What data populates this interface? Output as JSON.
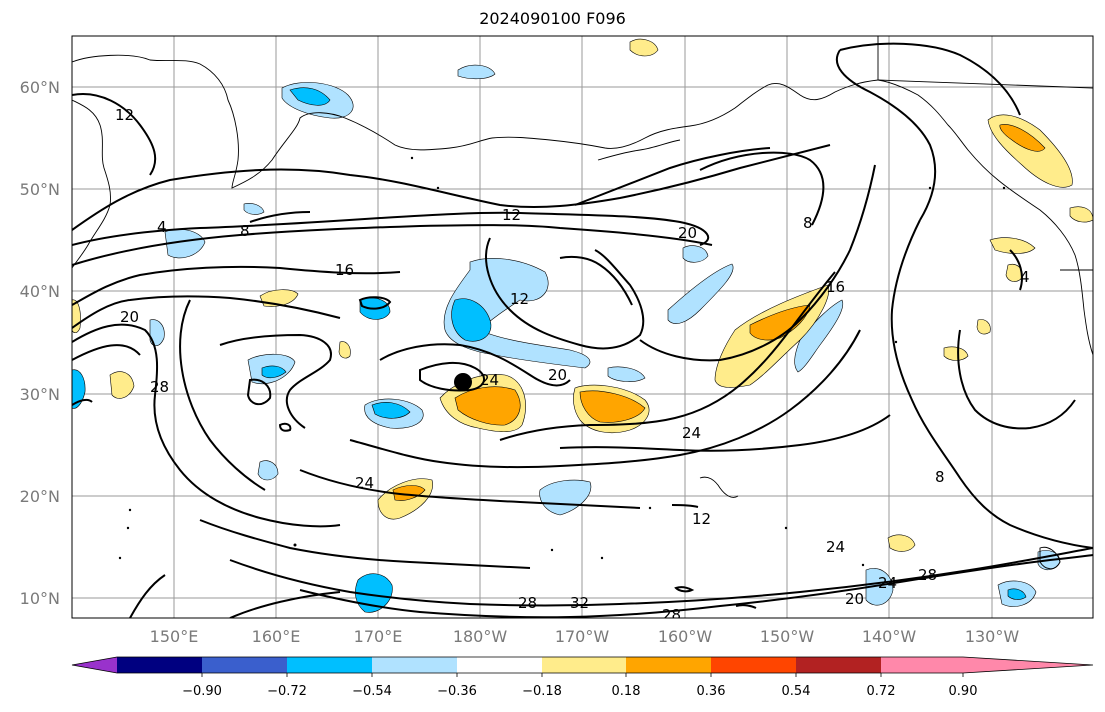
{
  "title": "2024090100 F096",
  "lon_ticks": [
    "150°E",
    "160°E",
    "170°E",
    "180°W",
    "170°W",
    "160°W",
    "150°W",
    "140°W",
    "130°W"
  ],
  "lat_ticks": [
    "10°N",
    "20°N",
    "30°N",
    "40°N",
    "50°N",
    "60°N"
  ],
  "contour_labels": [
    "12",
    "4",
    "8",
    "16",
    "20",
    "28",
    "20",
    "12",
    "8",
    "16",
    "20",
    "24",
    "24",
    "24",
    "12",
    "8",
    "4",
    "24",
    "28",
    "32",
    "28",
    "20",
    "24",
    "28",
    "12"
  ],
  "colorbar": {
    "ticks": [
      "−0.90",
      "−0.72",
      "−0.54",
      "−0.36",
      "−0.18",
      "0.18",
      "0.36",
      "0.54",
      "0.72",
      "0.90"
    ],
    "colors": [
      "#9932CC",
      "#000080",
      "#3A5FCD",
      "#00BFFF",
      "#B0E2FF",
      "#FFFFFF",
      "#FFEC8B",
      "#FFA500",
      "#FF4500",
      "#B22222",
      "#FF88AA"
    ]
  }
}
